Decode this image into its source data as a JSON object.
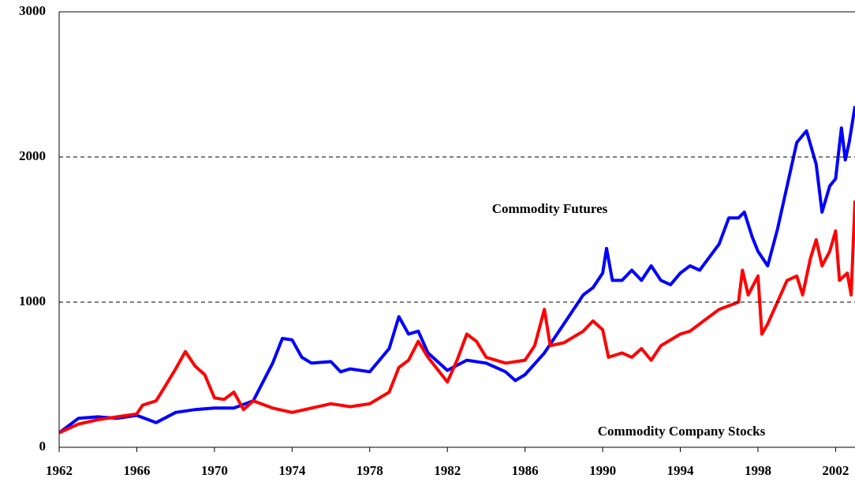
{
  "chart_data": {
    "type": "line",
    "xlim": [
      1962,
      2003
    ],
    "xticks": [
      1962,
      1966,
      1970,
      1974,
      1978,
      1982,
      1986,
      1990,
      1994,
      1998,
      2002
    ],
    "ylim": [
      0,
      3000
    ],
    "yticks": [
      0,
      1000,
      2000,
      3000
    ],
    "grid": true,
    "series": [
      {
        "name": "Commodity Futures",
        "color": "#0000ff",
        "x": [
          1962,
          1963,
          1964,
          1965,
          1966,
          1967,
          1968,
          1969,
          1970,
          1971,
          1972,
          1973,
          1973.5,
          1974,
          1974.5,
          1975,
          1976,
          1976.5,
          1977,
          1978,
          1979,
          1979.5,
          1980,
          1980.5,
          1981,
          1982,
          1983,
          1984,
          1985,
          1985.5,
          1986,
          1987,
          1988,
          1989,
          1989.5,
          1990,
          1990.2,
          1990.5,
          1991,
          1991.5,
          1992,
          1992.5,
          1993,
          1993.5,
          1994,
          1994.5,
          1995,
          1996,
          1996.5,
          1997,
          1997.3,
          1997.7,
          1998,
          1998.5,
          1999,
          1999.5,
          2000,
          2000.5,
          2001,
          2001.3,
          2001.7,
          2002,
          2002.3,
          2002.5,
          2002.7,
          2003
        ],
        "values": [
          100,
          200,
          210,
          200,
          220,
          170,
          240,
          260,
          270,
          270,
          320,
          580,
          750,
          740,
          620,
          580,
          590,
          520,
          540,
          520,
          680,
          900,
          780,
          800,
          650,
          530,
          600,
          580,
          520,
          460,
          500,
          650,
          850,
          1050,
          1100,
          1200,
          1370,
          1150,
          1150,
          1220,
          1150,
          1250,
          1150,
          1120,
          1200,
          1250,
          1220,
          1400,
          1580,
          1580,
          1620,
          1450,
          1350,
          1250,
          1500,
          1800,
          2100,
          2180,
          1950,
          1620,
          1800,
          1850,
          2200,
          1980,
          2100,
          2350
        ]
      },
      {
        "name": "Commodity Company Stocks",
        "color": "#ff0000",
        "x": [
          1962,
          1963,
          1964,
          1965,
          1966,
          1966.3,
          1967,
          1967.5,
          1968,
          1968.5,
          1969,
          1969.5,
          1970,
          1970.5,
          1971,
          1971.5,
          1972,
          1973,
          1974,
          1975,
          1976,
          1977,
          1978,
          1979,
          1979.5,
          1980,
          1980.5,
          1981,
          1982,
          1982.5,
          1983,
          1983.5,
          1984,
          1985,
          1986,
          1986.5,
          1987,
          1987.3,
          1988,
          1989,
          1989.5,
          1990,
          1990.3,
          1991,
          1991.5,
          1992,
          1992.5,
          1993,
          1994,
          1994.5,
          1995,
          1996,
          1997,
          1997.2,
          1997.5,
          1998,
          1998.2,
          1998.5,
          1999,
          1999.5,
          2000,
          2000.3,
          2000.7,
          2001,
          2001.3,
          2001.7,
          2002,
          2002.2,
          2002.6,
          2002.8,
          2003
        ],
        "values": [
          100,
          160,
          190,
          210,
          230,
          290,
          320,
          430,
          540,
          660,
          560,
          500,
          340,
          330,
          380,
          260,
          320,
          270,
          240,
          270,
          300,
          280,
          300,
          380,
          550,
          600,
          730,
          620,
          450,
          600,
          780,
          730,
          620,
          580,
          600,
          700,
          950,
          700,
          720,
          800,
          870,
          810,
          620,
          650,
          620,
          680,
          600,
          700,
          780,
          800,
          850,
          950,
          1000,
          1220,
          1050,
          1180,
          780,
          850,
          1000,
          1150,
          1180,
          1050,
          1300,
          1430,
          1250,
          1350,
          1490,
          1150,
          1200,
          1050,
          1700
        ]
      }
    ]
  }
}
